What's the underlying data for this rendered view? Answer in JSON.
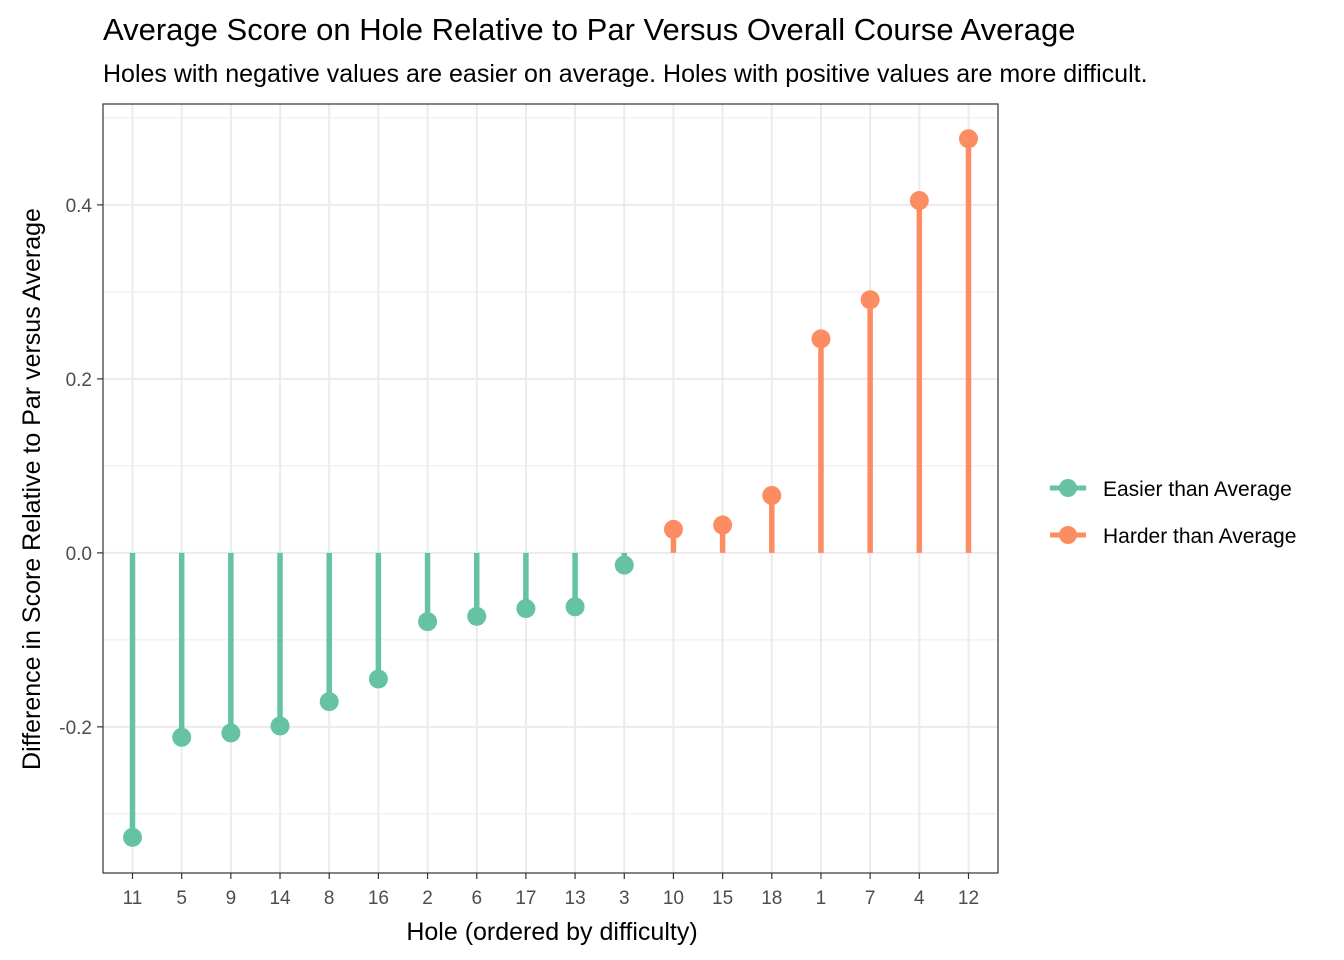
{
  "title": "Average Score on Hole Relative to Par Versus Overall Course Average",
  "subtitle": "Holes with negative values are easier on average. Holes with positive values are more difficult.",
  "colors": {
    "easier": "#66C2A5",
    "harder": "#FC8D62",
    "grid": "#EBEBEB",
    "border": "#333333"
  },
  "chart_data": {
    "type": "lollipop",
    "title": "Average Score on Hole Relative to Par Versus Overall Course Average",
    "subtitle": "Holes with negative values are easier on average. Holes with positive values are more difficult.",
    "xlabel": "Hole (ordered by difficulty)",
    "ylabel": "Difference in Score Relative to Par versus Average",
    "categories": [
      "11",
      "5",
      "9",
      "14",
      "8",
      "16",
      "2",
      "6",
      "17",
      "13",
      "3",
      "10",
      "15",
      "18",
      "1",
      "7",
      "4",
      "12"
    ],
    "values": [
      -0.327,
      -0.212,
      -0.207,
      -0.199,
      -0.171,
      -0.145,
      -0.079,
      -0.073,
      -0.064,
      -0.062,
      -0.014,
      0.027,
      0.032,
      0.066,
      0.246,
      0.291,
      0.405,
      0.476
    ],
    "groups": [
      "Easier than Average",
      "Easier than Average",
      "Easier than Average",
      "Easier than Average",
      "Easier than Average",
      "Easier than Average",
      "Easier than Average",
      "Easier than Average",
      "Easier than Average",
      "Easier than Average",
      "Easier than Average",
      "Harder than Average",
      "Harder than Average",
      "Harder than Average",
      "Harder than Average",
      "Harder than Average",
      "Harder than Average",
      "Harder than Average"
    ],
    "ylim": [
      -0.368,
      0.516
    ],
    "yticks": [
      -0.2,
      0.0,
      0.2,
      0.4
    ],
    "ytick_labels": [
      "-0.2",
      "0.0",
      "0.2",
      "0.4"
    ],
    "legend": {
      "position": "right",
      "entries": [
        "Easier than Average",
        "Harder than Average"
      ]
    },
    "grid": true
  }
}
